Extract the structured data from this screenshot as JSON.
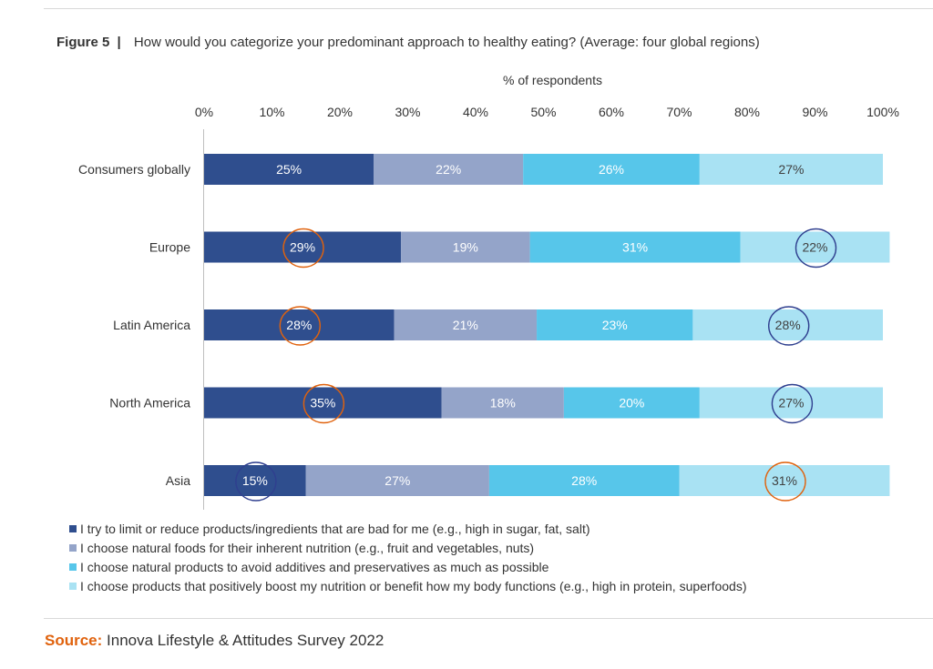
{
  "figure": {
    "label": "Figure 5",
    "separator": "|",
    "title": "How would you categorize your predominant approach to healthy eating? (Average: four global regions)"
  },
  "source": {
    "label": "Source:",
    "text": "Innova Lifestyle & Attitudes Survey 2022"
  },
  "colors": {
    "limit": "#2f4e8e",
    "natural_foods": "#94a4c9",
    "avoid_additives": "#57c6ea",
    "boost": "#a9e2f3",
    "highlight_orange": "#e0620d",
    "highlight_navy": "#2f3f8f",
    "source_label": "#e0620d"
  },
  "legend": [
    {
      "label": "I try to limit or reduce products/ingredients that are bad for me (e.g., high in sugar, fat, salt)",
      "color": "#2f4e8e"
    },
    {
      "label": "I choose natural foods for their inherent nutrition (e.g., fruit and vegetables, nuts)",
      "color": "#94a4c9"
    },
    {
      "label": "I choose natural products to avoid additives and preservatives as much as possible",
      "color": "#57c6ea"
    },
    {
      "label": "I choose products that positively boost my nutrition or benefit how my body functions (e.g., high in protein, superfoods)",
      "color": "#a9e2f3"
    }
  ],
  "chart_data": {
    "type": "bar",
    "orientation": "horizontal",
    "stacked": true,
    "title": "How would you categorize your predominant approach to healthy eating? (Average: four global regions)",
    "xlabel": "% of respondents",
    "ylabel": "",
    "xlim": [
      0,
      100
    ],
    "x_ticks": [
      "0%",
      "10%",
      "20%",
      "30%",
      "40%",
      "50%",
      "60%",
      "70%",
      "80%",
      "90%",
      "100%"
    ],
    "categories": [
      "Consumers globally",
      "Europe",
      "Latin America",
      "North America",
      "Asia"
    ],
    "series": [
      {
        "name": "I try to limit or reduce products/ingredients that are bad for me (e.g., high in sugar, fat, salt)",
        "values": [
          25,
          29,
          28,
          35,
          15
        ],
        "labels": [
          "25%",
          "29%",
          "28%",
          "35%",
          "15%"
        ],
        "color": "#2f4e8e",
        "text_color": "#ffffff"
      },
      {
        "name": "I choose natural foods for their inherent nutrition (e.g., fruit and vegetables, nuts)",
        "values": [
          22,
          19,
          21,
          18,
          27
        ],
        "labels": [
          "22%",
          "19%",
          "21%",
          "18%",
          "27%"
        ],
        "color": "#94a4c9",
        "text_color": "#ffffff"
      },
      {
        "name": "I choose natural products to avoid additives and preservatives as much as possible",
        "values": [
          26,
          31,
          23,
          20,
          28
        ],
        "labels": [
          "26%",
          "31%",
          "23%",
          "20%",
          "28%"
        ],
        "color": "#57c6ea",
        "text_color": "#ffffff"
      },
      {
        "name": "I choose products that positively boost my nutrition or benefit how my body functions (e.g., high in protein, superfoods)",
        "values": [
          27,
          22,
          28,
          27,
          31
        ],
        "labels": [
          "27%",
          "22%",
          "28%",
          "27%",
          "31%"
        ],
        "color": "#a9e2f3",
        "text_color": "#404040"
      }
    ],
    "annotations": [
      {
        "category": "Europe",
        "series": 0,
        "shape": "circle",
        "color": "orange"
      },
      {
        "category": "Europe",
        "series": 3,
        "shape": "circle",
        "color": "navy"
      },
      {
        "category": "Latin America",
        "series": 0,
        "shape": "circle",
        "color": "orange"
      },
      {
        "category": "Latin America",
        "series": 3,
        "shape": "circle",
        "color": "navy"
      },
      {
        "category": "North America",
        "series": 0,
        "shape": "circle",
        "color": "orange"
      },
      {
        "category": "North America",
        "series": 3,
        "shape": "circle",
        "color": "navy"
      },
      {
        "category": "Asia",
        "series": 0,
        "shape": "circle",
        "color": "navy"
      },
      {
        "category": "Asia",
        "series": 3,
        "shape": "circle",
        "color": "orange"
      }
    ]
  }
}
